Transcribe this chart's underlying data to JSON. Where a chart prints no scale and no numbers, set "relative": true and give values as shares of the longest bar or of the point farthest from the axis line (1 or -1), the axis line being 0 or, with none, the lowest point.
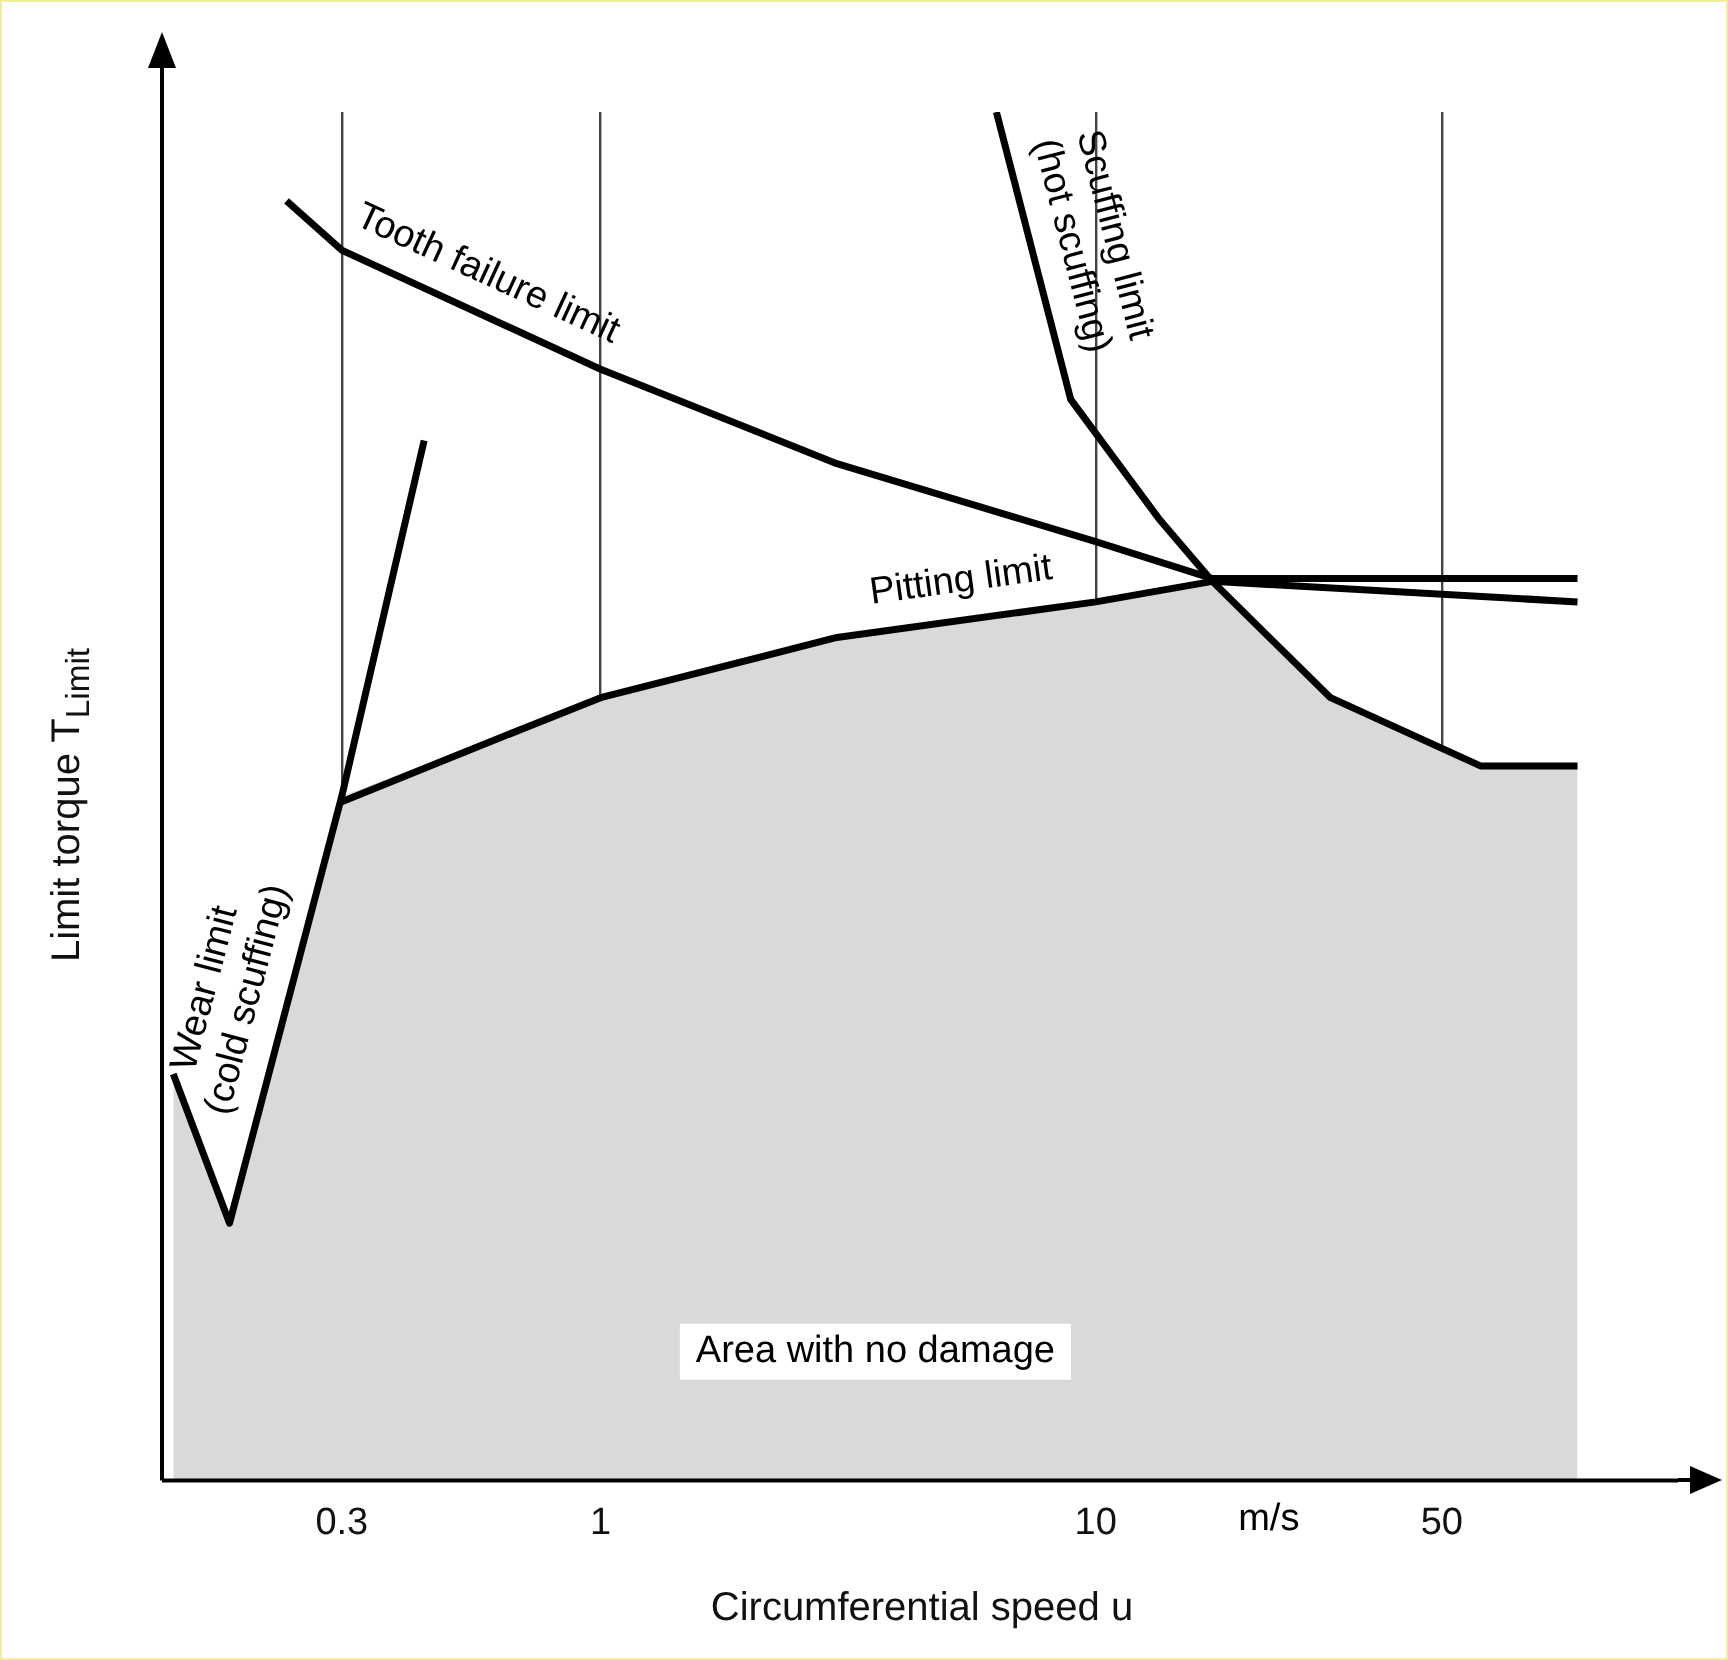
{
  "chart_data": {
    "type": "line",
    "relative": true,
    "xlabel": "Circumferential speed u",
    "ylabel": "Limit torque T$_{Limit}$",
    "log": "x",
    "xlim": [
      0.13,
      150
    ],
    "xticks": [
      0.3,
      1,
      10,
      50
    ],
    "grid": "x",
    "legend": false,
    "marker": "none",
    "annotations": [
      "m/s"
    ],
    "series": [
      {
        "name": "Area with no damage",
        "type": "area",
        "color": "#d9d9d9",
        "x": [
          0.137,
          0.178,
          0.3,
          1,
          3,
          10,
          17.2,
          29.8,
          60,
          94
        ],
        "values": [
          0.297,
          0.188,
          0.5,
          0.572,
          0.616,
          0.642,
          0.657,
          0.572,
          0.522,
          0.522
        ]
      },
      {
        "name": "Wear limit (cold scuffing)",
        "color": "#000000",
        "x": [
          0.137,
          0.178,
          0.3,
          0.44
        ],
        "values": [
          0.297,
          0.188,
          0.5,
          0.76
        ]
      },
      {
        "name": "Pitting limit",
        "color": "#000000",
        "x": [
          0.3,
          0.6,
          1,
          3,
          10,
          17.2,
          94
        ],
        "values": [
          0.496,
          0.54,
          0.572,
          0.616,
          0.642,
          0.657,
          0.642
        ]
      },
      {
        "name": "Tooth failure limit",
        "color": "#000000",
        "x": [
          0.232,
          0.3,
          1,
          3,
          10,
          17.2,
          94
        ],
        "values": [
          0.935,
          0.899,
          0.812,
          0.743,
          0.686,
          0.659,
          0.659
        ]
      },
      {
        "name": "Scuffing limit (hot scuffing)",
        "color": "#000000",
        "x": [
          6.3,
          8.9,
          13.4,
          17.2,
          29.8,
          60,
          94
        ],
        "values": [
          1.0,
          0.79,
          0.703,
          0.657,
          0.572,
          0.522,
          0.522
        ]
      }
    ]
  }
}
